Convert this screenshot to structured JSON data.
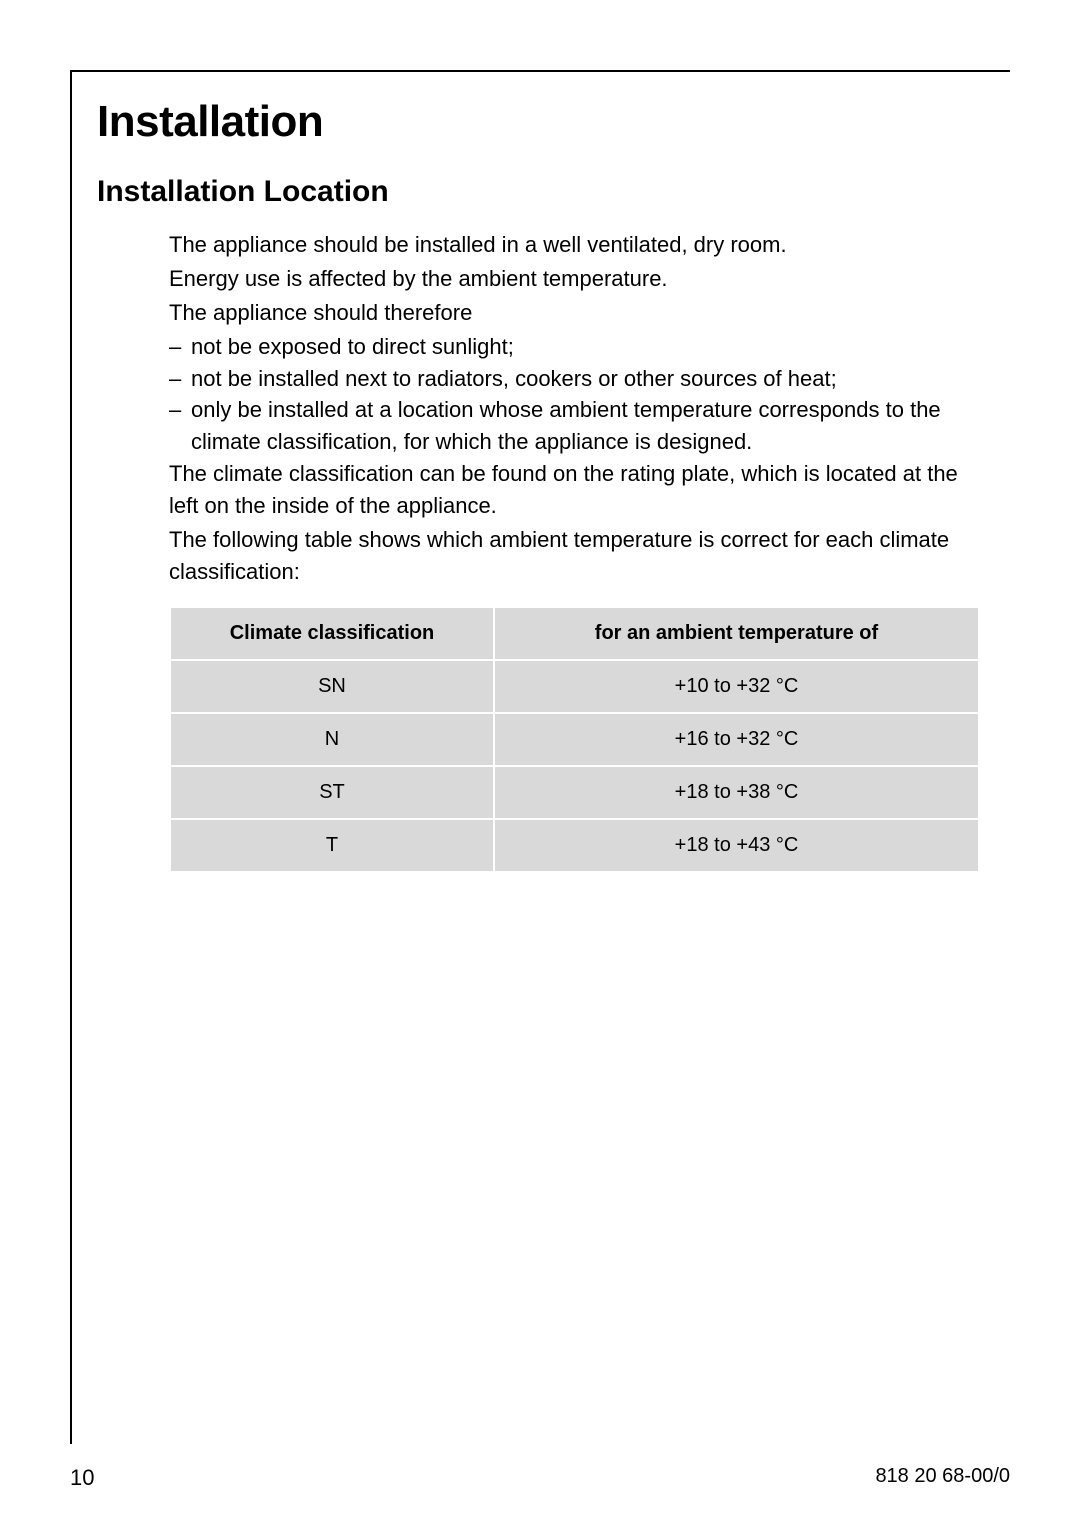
{
  "main_title": "Installation",
  "section_title": "Installation Location",
  "paragraphs": {
    "p1": "The appliance should be installed in a well ventilated, dry room.",
    "p2": "Energy use is affected by the ambient temperature.",
    "p3": "The appliance should therefore",
    "li1": "not be exposed to direct sunlight;",
    "li2": "not be installed next to radiators, cookers or other sources of heat;",
    "li3": "only be installed at a location whose ambient temperature corresponds to the climate classification, for which the appliance is designed.",
    "p4": "The climate classification can be found on the rating plate, which is located at the left on the inside of the appliance.",
    "p5": "The following table shows which ambient temperature is correct for each climate classification:"
  },
  "table": {
    "header_col1": "Climate classification",
    "header_col2": "for an ambient temperature of",
    "rows": [
      {
        "class": "SN",
        "temp": "+10 to +32 °C"
      },
      {
        "class": "N",
        "temp": "+16 to +32 °C"
      },
      {
        "class": "ST",
        "temp": "+18 to +38 °C"
      },
      {
        "class": "T",
        "temp": "+18 to +43 °C"
      }
    ],
    "header_bg": "#d9d9d9",
    "cell_bg": "#d9d9d9"
  },
  "footer": {
    "page_number": "10",
    "doc_ref": "818 20 68-00/0"
  }
}
